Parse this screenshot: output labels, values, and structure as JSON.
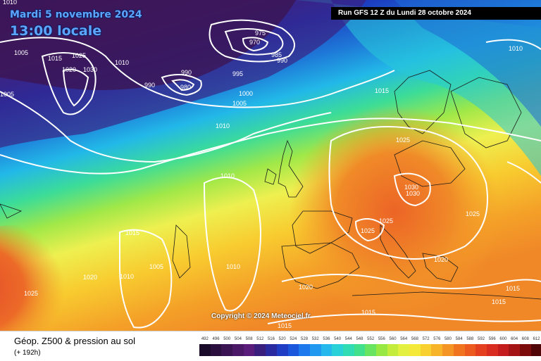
{
  "map": {
    "date_label": "Mardi 5 novembre 2024",
    "time_label": "13:00 locale",
    "run_info": "Run GFS 12 Z du Lundi 28 octobre 2024",
    "copyright": "Copyright © 2024 Meteociel.fr"
  },
  "legend": {
    "title": "Géop. Z500 & pression au sol",
    "subtitle": "(+ 192h)",
    "scale_values": [
      "492",
      "496",
      "500",
      "504",
      "508",
      "512",
      "516",
      "520",
      "524",
      "528",
      "532",
      "536",
      "540",
      "544",
      "548",
      "552",
      "556",
      "560",
      "564",
      "568",
      "572",
      "576",
      "580",
      "584",
      "588",
      "592",
      "596",
      "600",
      "604",
      "608",
      "612"
    ],
    "scale_colors": [
      "#1a0a2a",
      "#2a0f3e",
      "#3a1452",
      "#4a1866",
      "#5a1c7a",
      "#3a1e7e",
      "#2a2aa0",
      "#1e3cc4",
      "#1a56dc",
      "#1c78ec",
      "#2098f0",
      "#24b8ec",
      "#28d0d8",
      "#30dcb4",
      "#40e08c",
      "#68e460",
      "#98e844",
      "#c4ec3c",
      "#e4f040",
      "#f4e838",
      "#f8d030",
      "#f8b428",
      "#f49424",
      "#f07420",
      "#ec5a20",
      "#e44020",
      "#d82c20",
      "#c41c1c",
      "#a41414",
      "#7c0c0c",
      "#500606"
    ]
  },
  "isobars": [
    "1010",
    "1005",
    "1015",
    "1020",
    "1025",
    "1030",
    "1010",
    "990",
    "975",
    "970",
    "985",
    "990",
    "990",
    "980",
    "995",
    "1000",
    "1005",
    "1015",
    "1010",
    "1010",
    "1010",
    "1025",
    "1030",
    "1030",
    "1025",
    "1025",
    "1025",
    "1015",
    "1020",
    "1025",
    "1010",
    "1005",
    "1010",
    "1020",
    "1020",
    "1015",
    "1015",
    "1015",
    "1015",
    "1005"
  ]
}
